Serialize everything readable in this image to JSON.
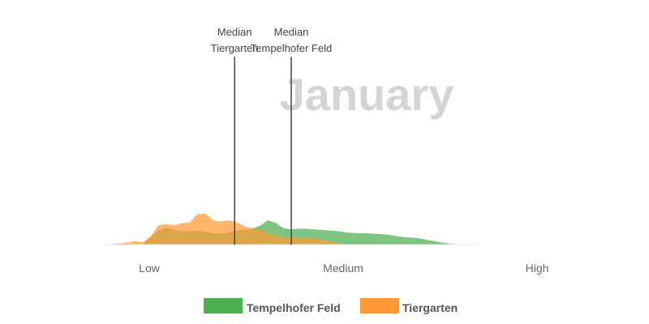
{
  "chart_data": {
    "type": "area",
    "title": "January",
    "xlabel": "",
    "ylabel": "",
    "x_ticks": [
      "Low",
      "Medium",
      "High"
    ],
    "x": [
      0.0,
      0.02,
      0.04,
      0.06,
      0.08,
      0.1,
      0.12,
      0.14,
      0.16,
      0.18,
      0.2,
      0.22,
      0.24,
      0.26,
      0.28,
      0.3,
      0.32,
      0.34,
      0.36,
      0.38,
      0.4,
      0.42,
      0.44,
      0.46,
      0.48,
      0.5,
      0.52,
      0.54,
      0.56,
      0.58,
      0.6,
      0.62,
      0.64,
      0.66,
      0.68,
      0.7,
      0.72,
      0.74,
      0.76,
      0.78,
      0.8,
      0.82,
      0.84,
      0.86,
      0.88,
      0.9,
      0.92,
      0.94,
      0.96
    ],
    "ylim": [
      0,
      1
    ],
    "series": [
      {
        "name": "Tempelhofer Feld",
        "color": "#4caf50",
        "values": [
          0,
          0,
          0,
          0,
          0,
          0.02,
          0.3,
          0.6,
          0.7,
          0.62,
          0.55,
          0.55,
          0.58,
          0.52,
          0.47,
          0.45,
          0.5,
          0.58,
          0.6,
          0.66,
          0.78,
          1.0,
          0.9,
          0.68,
          0.63,
          0.66,
          0.65,
          0.62,
          0.6,
          0.58,
          0.55,
          0.5,
          0.48,
          0.47,
          0.46,
          0.44,
          0.42,
          0.38,
          0.32,
          0.3,
          0.28,
          0.22,
          0.16,
          0.1,
          0.05,
          0.02,
          0,
          0,
          0
        ]
      },
      {
        "name": "Tiergarten",
        "color": "#ff9933",
        "values": [
          0,
          0.02,
          0.05,
          0.08,
          0.14,
          0.1,
          0.35,
          0.8,
          0.85,
          0.8,
          0.88,
          0.92,
          1.25,
          1.28,
          1.0,
          0.95,
          1.0,
          0.92,
          0.75,
          0.68,
          0.62,
          0.48,
          0.38,
          0.33,
          0.28,
          0.28,
          0.28,
          0.26,
          0.2,
          0.12,
          0.05,
          0.02,
          0,
          0,
          0,
          0,
          0,
          0,
          0,
          0,
          0,
          0,
          0,
          0,
          0,
          0,
          0,
          0,
          0
        ]
      }
    ],
    "medians": [
      {
        "series": "Tiergarten",
        "x": 0.335,
        "label_line1": "Median",
        "label_line2": "Tiergarten"
      },
      {
        "series": "Tempelhofer Feld",
        "x": 0.48,
        "label_line1": "Median",
        "label_line2": "Tempelhofer Feld"
      }
    ],
    "legend": {
      "position": "bottom",
      "items": [
        {
          "label": "Tempelhofer Feld",
          "color": "#4caf50"
        },
        {
          "label": "Tiergarten",
          "color": "#ff9933"
        }
      ]
    }
  }
}
